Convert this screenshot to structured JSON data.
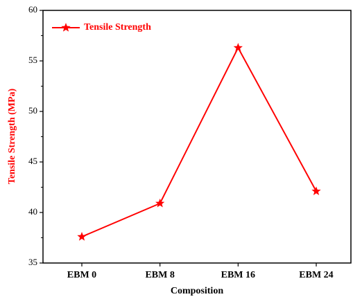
{
  "chart_data": {
    "type": "line",
    "categories": [
      "EBM 0",
      "EBM 8",
      "EBM 16",
      "EBM 24"
    ],
    "series": [
      {
        "name": "Tensile Strength",
        "color": "#ff0000",
        "values": [
          37.6,
          40.9,
          56.3,
          42.1
        ]
      }
    ],
    "xlabel": "Composition",
    "ylabel": "Tensile Strength (MPa)",
    "ylim": [
      35,
      60
    ],
    "yticks": [
      35,
      40,
      45,
      50,
      55,
      60
    ],
    "legend": "upper left"
  }
}
